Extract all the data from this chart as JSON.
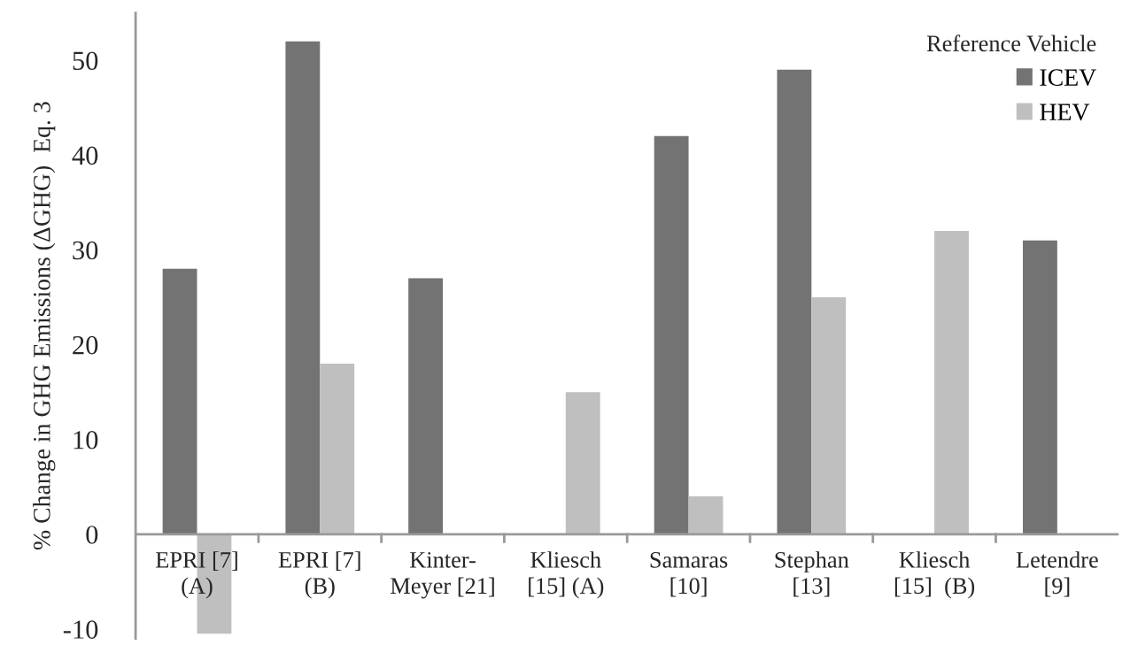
{
  "chart_data": {
    "type": "bar",
    "ylabel": "% Change in GHG Emissions (ΔGHG)  Eq. 3",
    "legend_title": "Reference Vehicle",
    "legend": "top right",
    "categories": [
      "EPRI [7]\n(A)",
      "EPRI [7]\n(B)",
      "Kinter-\nMeyer [21]",
      "Kliesch\n[15] (A)",
      "Samaras\n[10]",
      "Stephan\n[13]",
      "Kliesch\n[15]  (B)",
      "Letendre\n[9]"
    ],
    "series": [
      {
        "name": "ICEV",
        "color": "#737373",
        "values": [
          28,
          52,
          27,
          null,
          42,
          49,
          null,
          31
        ]
      },
      {
        "name": "HEV",
        "color": "#bfbfbf",
        "values": [
          -10.5,
          18,
          null,
          15,
          4,
          25,
          32,
          null
        ]
      }
    ],
    "ylim": [
      -11,
      55
    ],
    "yticks": [
      -10,
      0,
      10,
      20,
      30,
      40,
      50
    ],
    "grid": false
  }
}
